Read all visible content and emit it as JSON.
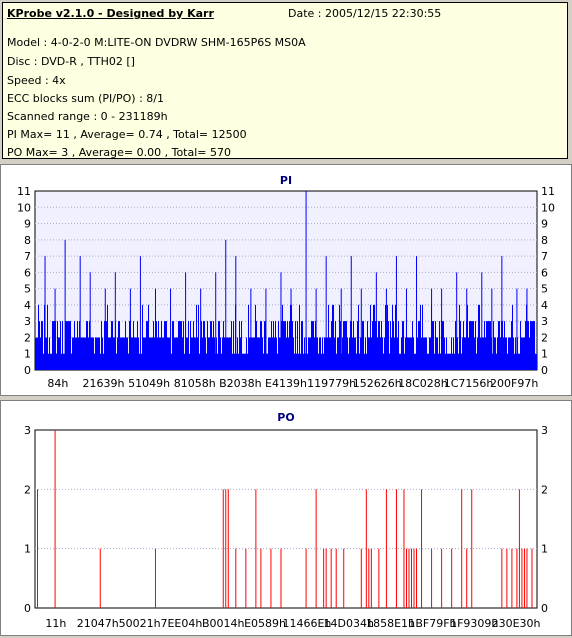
{
  "info": {
    "title": "KProbe v2.1.0 - Designed by Karr",
    "date": "Date : 2005/12/15 22:30:55",
    "lines": [
      "Model : 4-0-2-0 M:LITE-ON DVDRW SHM-165P6S MS0A",
      "Disc : DVD-R , TTH02 []",
      "Speed : 4x",
      "ECC blocks sum (PI/PO) : 8/1",
      "Scanned range : 0 - 231189h",
      "PI Max= 11 , Average= 0.74 , Total= 12500",
      "PO Max= 3 , Average= 0.00 , Total= 570"
    ]
  },
  "colors": {
    "pi": "#0000ff",
    "po": "#ff0000",
    "plot_bg": "#f0f0ff"
  },
  "chart_data": [
    {
      "type": "bar",
      "title": "PI",
      "ylim": [
        0,
        11
      ],
      "yticks": [
        0,
        1,
        2,
        3,
        4,
        5,
        6,
        7,
        8,
        9,
        10,
        11
      ],
      "grid": true,
      "xtick_labels": [
        "84h",
        "21639h",
        "51049h",
        "81058h",
        "B2038h",
        "E4139h",
        "119779h",
        "152626h",
        "18C028h",
        "1C7156h",
        "200F97h"
      ],
      "spikes": [
        {
          "x": 0.02,
          "v": 7
        },
        {
          "x": 0.04,
          "v": 5
        },
        {
          "x": 0.06,
          "v": 8
        },
        {
          "x": 0.09,
          "v": 7
        },
        {
          "x": 0.11,
          "v": 6
        },
        {
          "x": 0.14,
          "v": 5
        },
        {
          "x": 0.16,
          "v": 6
        },
        {
          "x": 0.19,
          "v": 5
        },
        {
          "x": 0.21,
          "v": 7
        },
        {
          "x": 0.24,
          "v": 5
        },
        {
          "x": 0.27,
          "v": 5
        },
        {
          "x": 0.3,
          "v": 6
        },
        {
          "x": 0.33,
          "v": 5
        },
        {
          "x": 0.36,
          "v": 6
        },
        {
          "x": 0.38,
          "v": 8
        },
        {
          "x": 0.4,
          "v": 7
        },
        {
          "x": 0.43,
          "v": 5
        },
        {
          "x": 0.46,
          "v": 5
        },
        {
          "x": 0.49,
          "v": 6
        },
        {
          "x": 0.51,
          "v": 5
        },
        {
          "x": 0.54,
          "v": 11
        },
        {
          "x": 0.56,
          "v": 5
        },
        {
          "x": 0.58,
          "v": 7
        },
        {
          "x": 0.61,
          "v": 5
        },
        {
          "x": 0.63,
          "v": 7
        },
        {
          "x": 0.65,
          "v": 5
        },
        {
          "x": 0.68,
          "v": 6
        },
        {
          "x": 0.7,
          "v": 5
        },
        {
          "x": 0.72,
          "v": 7
        },
        {
          "x": 0.74,
          "v": 5
        },
        {
          "x": 0.76,
          "v": 7
        },
        {
          "x": 0.79,
          "v": 5
        },
        {
          "x": 0.81,
          "v": 5
        },
        {
          "x": 0.84,
          "v": 6
        },
        {
          "x": 0.86,
          "v": 5
        },
        {
          "x": 0.89,
          "v": 6
        },
        {
          "x": 0.91,
          "v": 5
        },
        {
          "x": 0.93,
          "v": 7
        },
        {
          "x": 0.96,
          "v": 5
        },
        {
          "x": 0.98,
          "v": 5
        }
      ]
    },
    {
      "type": "bar",
      "title": "PO",
      "ylim": [
        0,
        3
      ],
      "yticks": [
        0,
        1,
        2,
        3
      ],
      "grid": true,
      "xtick_labels": [
        "11h",
        "21047h",
        "50021h",
        "7EE04h",
        "B0014h",
        "E0589h",
        "11466Eh",
        "14D034h",
        "1858E1h",
        "1BF79Fh",
        "1F9309h",
        "230E30h"
      ],
      "bars": [
        {
          "x": 0.005,
          "v": 2
        },
        {
          "x": 0.04,
          "v": 3
        },
        {
          "x": 0.13,
          "v": 1
        },
        {
          "x": 0.24,
          "v": 1
        },
        {
          "x": 0.375,
          "v": 2
        },
        {
          "x": 0.38,
          "v": 2
        },
        {
          "x": 0.385,
          "v": 2
        },
        {
          "x": 0.4,
          "v": 1
        },
        {
          "x": 0.42,
          "v": 1
        },
        {
          "x": 0.44,
          "v": 2
        },
        {
          "x": 0.45,
          "v": 1
        },
        {
          "x": 0.47,
          "v": 1
        },
        {
          "x": 0.49,
          "v": 1
        },
        {
          "x": 0.54,
          "v": 1
        },
        {
          "x": 0.56,
          "v": 2
        },
        {
          "x": 0.575,
          "v": 1
        },
        {
          "x": 0.58,
          "v": 1
        },
        {
          "x": 0.59,
          "v": 1
        },
        {
          "x": 0.6,
          "v": 1
        },
        {
          "x": 0.615,
          "v": 1
        },
        {
          "x": 0.65,
          "v": 1
        },
        {
          "x": 0.66,
          "v": 2
        },
        {
          "x": 0.665,
          "v": 1
        },
        {
          "x": 0.67,
          "v": 1
        },
        {
          "x": 0.685,
          "v": 1
        },
        {
          "x": 0.7,
          "v": 2
        },
        {
          "x": 0.72,
          "v": 2
        },
        {
          "x": 0.735,
          "v": 2
        },
        {
          "x": 0.74,
          "v": 1
        },
        {
          "x": 0.745,
          "v": 1
        },
        {
          "x": 0.75,
          "v": 1
        },
        {
          "x": 0.755,
          "v": 1
        },
        {
          "x": 0.76,
          "v": 1
        },
        {
          "x": 0.77,
          "v": 2
        },
        {
          "x": 0.79,
          "v": 1
        },
        {
          "x": 0.81,
          "v": 1
        },
        {
          "x": 0.83,
          "v": 1
        },
        {
          "x": 0.85,
          "v": 2
        },
        {
          "x": 0.86,
          "v": 1
        },
        {
          "x": 0.87,
          "v": 2
        },
        {
          "x": 0.93,
          "v": 1
        },
        {
          "x": 0.94,
          "v": 1
        },
        {
          "x": 0.95,
          "v": 1
        },
        {
          "x": 0.96,
          "v": 1
        },
        {
          "x": 0.965,
          "v": 2
        },
        {
          "x": 0.97,
          "v": 1
        },
        {
          "x": 0.975,
          "v": 1
        },
        {
          "x": 0.98,
          "v": 1
        },
        {
          "x": 0.99,
          "v": 1
        }
      ]
    }
  ]
}
